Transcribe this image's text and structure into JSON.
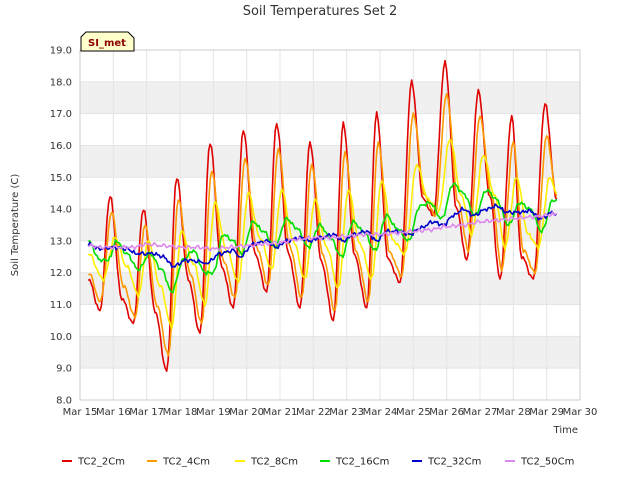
{
  "chart_data": {
    "type": "line",
    "title": "Soil Temperatures Set 2",
    "xlabel": "Time",
    "ylabel": "Soil Temperature (C)",
    "badge": "SI_met",
    "ylim": [
      8.0,
      19.0
    ],
    "xlim": [
      15,
      30
    ],
    "y_ticks": [
      "8.0",
      "9.0",
      "10.0",
      "11.0",
      "12.0",
      "13.0",
      "14.0",
      "15.0",
      "16.0",
      "17.0",
      "18.0",
      "19.0"
    ],
    "x_ticks": [
      "Mar 15",
      "Mar 16",
      "Mar 17",
      "Mar 18",
      "Mar 19",
      "Mar 20",
      "Mar 21",
      "Mar 22",
      "Mar 23",
      "Mar 24",
      "Mar 25",
      "Mar 26",
      "Mar 27",
      "Mar 28",
      "Mar 29",
      "Mar 30"
    ],
    "grid": true,
    "legend_position": "bottom",
    "series": [
      {
        "name": "TC2_2Cm",
        "color": "#e00000",
        "points": [
          [
            15.25,
            11.8
          ],
          [
            15.6,
            10.8
          ],
          [
            15.9,
            14.4
          ],
          [
            16.25,
            11.2
          ],
          [
            16.6,
            10.4
          ],
          [
            16.9,
            14.0
          ],
          [
            17.25,
            10.8
          ],
          [
            17.6,
            8.9
          ],
          [
            17.9,
            15.0
          ],
          [
            18.25,
            11.8
          ],
          [
            18.6,
            10.1
          ],
          [
            18.9,
            16.1
          ],
          [
            19.25,
            12.2
          ],
          [
            19.6,
            10.9
          ],
          [
            19.9,
            16.5
          ],
          [
            20.25,
            12.6
          ],
          [
            20.6,
            11.4
          ],
          [
            20.9,
            16.7
          ],
          [
            21.25,
            12.6
          ],
          [
            21.6,
            10.9
          ],
          [
            21.9,
            16.1
          ],
          [
            22.25,
            12.3
          ],
          [
            22.6,
            10.5
          ],
          [
            22.9,
            16.7
          ],
          [
            23.25,
            12.5
          ],
          [
            23.6,
            10.9
          ],
          [
            23.9,
            17.0
          ],
          [
            24.25,
            12.4
          ],
          [
            24.6,
            11.7
          ],
          [
            24.95,
            18.0
          ],
          [
            25.3,
            14.3
          ],
          [
            25.6,
            13.8
          ],
          [
            25.95,
            18.6
          ],
          [
            26.3,
            14.0
          ],
          [
            26.6,
            12.4
          ],
          [
            26.95,
            17.7
          ],
          [
            27.3,
            14.4
          ],
          [
            27.6,
            11.8
          ],
          [
            27.95,
            16.9
          ],
          [
            28.25,
            12.5
          ],
          [
            28.6,
            11.8
          ],
          [
            28.95,
            17.3
          ],
          [
            29.3,
            14.3
          ]
        ]
      },
      {
        "name": "TC2_4Cm",
        "color": "#ff9900",
        "points": [
          [
            15.25,
            12.0
          ],
          [
            15.62,
            11.1
          ],
          [
            15.95,
            13.9
          ],
          [
            16.3,
            11.6
          ],
          [
            16.65,
            10.6
          ],
          [
            16.95,
            13.5
          ],
          [
            17.3,
            11.0
          ],
          [
            17.65,
            9.4
          ],
          [
            17.95,
            14.3
          ],
          [
            18.3,
            12.0
          ],
          [
            18.65,
            10.4
          ],
          [
            18.95,
            15.2
          ],
          [
            19.3,
            12.4
          ],
          [
            19.65,
            11.2
          ],
          [
            19.95,
            15.6
          ],
          [
            20.3,
            12.8
          ],
          [
            20.65,
            11.6
          ],
          [
            20.95,
            15.9
          ],
          [
            21.3,
            12.8
          ],
          [
            21.65,
            11.2
          ],
          [
            21.95,
            15.4
          ],
          [
            22.3,
            12.5
          ],
          [
            22.65,
            10.8
          ],
          [
            22.95,
            15.8
          ],
          [
            23.3,
            12.6
          ],
          [
            23.65,
            11.1
          ],
          [
            23.95,
            16.1
          ],
          [
            24.3,
            12.6
          ],
          [
            24.65,
            11.9
          ],
          [
            25.0,
            17.0
          ],
          [
            25.35,
            14.4
          ],
          [
            25.65,
            13.8
          ],
          [
            26.0,
            17.6
          ],
          [
            26.35,
            14.2
          ],
          [
            26.65,
            12.7
          ],
          [
            27.0,
            16.9
          ],
          [
            27.35,
            14.4
          ],
          [
            27.65,
            12.1
          ],
          [
            28.0,
            16.1
          ],
          [
            28.3,
            12.7
          ],
          [
            28.65,
            12.0
          ],
          [
            29.0,
            16.3
          ],
          [
            29.3,
            14.4
          ]
        ]
      },
      {
        "name": "TC2_8Cm",
        "color": "#ffee00",
        "points": [
          [
            15.25,
            12.6
          ],
          [
            15.7,
            11.8
          ],
          [
            16.05,
            13.1
          ],
          [
            16.4,
            12.2
          ],
          [
            16.75,
            11.3
          ],
          [
            17.05,
            13.0
          ],
          [
            17.4,
            11.6
          ],
          [
            17.75,
            10.3
          ],
          [
            18.05,
            13.3
          ],
          [
            18.4,
            12.3
          ],
          [
            18.75,
            11.0
          ],
          [
            19.05,
            14.2
          ],
          [
            19.4,
            12.7
          ],
          [
            19.75,
            11.7
          ],
          [
            20.05,
            14.5
          ],
          [
            20.4,
            13.1
          ],
          [
            20.75,
            12.1
          ],
          [
            21.05,
            14.6
          ],
          [
            21.4,
            13.0
          ],
          [
            21.75,
            11.8
          ],
          [
            22.05,
            14.3
          ],
          [
            22.4,
            12.8
          ],
          [
            22.75,
            11.5
          ],
          [
            23.05,
            14.6
          ],
          [
            23.4,
            12.9
          ],
          [
            23.75,
            11.8
          ],
          [
            24.05,
            14.9
          ],
          [
            24.4,
            13.0
          ],
          [
            24.75,
            12.6
          ],
          [
            25.1,
            15.4
          ],
          [
            25.45,
            14.3
          ],
          [
            25.75,
            13.9
          ],
          [
            26.1,
            16.2
          ],
          [
            26.45,
            14.4
          ],
          [
            26.75,
            13.2
          ],
          [
            27.1,
            15.7
          ],
          [
            27.45,
            14.4
          ],
          [
            27.75,
            12.8
          ],
          [
            28.1,
            15.0
          ],
          [
            28.45,
            13.2
          ],
          [
            28.75,
            12.8
          ],
          [
            29.1,
            15.0
          ],
          [
            29.3,
            14.5
          ]
        ]
      },
      {
        "name": "TC2_16Cm",
        "color": "#00dd00",
        "points": [
          [
            15.25,
            13.0
          ],
          [
            15.6,
            12.4
          ],
          [
            15.85,
            12.4
          ],
          [
            16.1,
            13.0
          ],
          [
            16.4,
            12.6
          ],
          [
            16.75,
            12.1
          ],
          [
            17.1,
            12.6
          ],
          [
            17.45,
            12.1
          ],
          [
            17.75,
            11.4
          ],
          [
            18.1,
            12.4
          ],
          [
            18.4,
            12.7
          ],
          [
            18.75,
            12.0
          ],
          [
            19.0,
            12.0
          ],
          [
            19.3,
            13.2
          ],
          [
            19.6,
            13.0
          ],
          [
            19.85,
            12.6
          ],
          [
            20.2,
            13.6
          ],
          [
            20.5,
            13.3
          ],
          [
            20.85,
            12.8
          ],
          [
            21.2,
            13.7
          ],
          [
            21.5,
            13.4
          ],
          [
            21.85,
            12.8
          ],
          [
            22.2,
            13.5
          ],
          [
            22.5,
            13.1
          ],
          [
            22.85,
            12.5
          ],
          [
            23.2,
            13.6
          ],
          [
            23.5,
            13.3
          ],
          [
            23.85,
            12.7
          ],
          [
            24.2,
            13.8
          ],
          [
            24.5,
            13.4
          ],
          [
            24.85,
            13.0
          ],
          [
            25.2,
            14.1
          ],
          [
            25.5,
            14.2
          ],
          [
            25.85,
            13.7
          ],
          [
            26.2,
            14.8
          ],
          [
            26.5,
            14.5
          ],
          [
            26.85,
            13.8
          ],
          [
            27.2,
            14.6
          ],
          [
            27.5,
            14.3
          ],
          [
            27.85,
            13.5
          ],
          [
            28.2,
            14.2
          ],
          [
            28.5,
            14.0
          ],
          [
            28.85,
            13.3
          ],
          [
            29.2,
            14.3
          ],
          [
            29.3,
            14.3
          ]
        ]
      },
      {
        "name": "TC2_32Cm",
        "color": "#0000cc",
        "points": [
          [
            15.25,
            12.9
          ],
          [
            15.6,
            12.75
          ],
          [
            16.0,
            12.8
          ],
          [
            16.4,
            12.75
          ],
          [
            16.7,
            12.6
          ],
          [
            17.2,
            12.6
          ],
          [
            17.5,
            12.5
          ],
          [
            17.8,
            12.2
          ],
          [
            18.2,
            12.4
          ],
          [
            18.6,
            12.35
          ],
          [
            18.8,
            12.3
          ],
          [
            19.2,
            12.6
          ],
          [
            19.6,
            12.7
          ],
          [
            19.8,
            12.5
          ],
          [
            20.2,
            12.9
          ],
          [
            20.6,
            13.0
          ],
          [
            20.9,
            12.8
          ],
          [
            21.2,
            13.0
          ],
          [
            21.6,
            13.1
          ],
          [
            21.9,
            13.0
          ],
          [
            22.2,
            13.1
          ],
          [
            22.6,
            13.2
          ],
          [
            22.9,
            13.0
          ],
          [
            23.2,
            13.2
          ],
          [
            23.6,
            13.3
          ],
          [
            23.9,
            13.0
          ],
          [
            24.2,
            13.3
          ],
          [
            24.6,
            13.3
          ],
          [
            24.9,
            13.2
          ],
          [
            25.2,
            13.4
          ],
          [
            25.6,
            13.6
          ],
          [
            25.9,
            13.5
          ],
          [
            26.2,
            13.8
          ],
          [
            26.5,
            14.0
          ],
          [
            26.8,
            13.8
          ],
          [
            27.2,
            14.0
          ],
          [
            27.5,
            14.1
          ],
          [
            27.8,
            13.9
          ],
          [
            28.2,
            13.9
          ],
          [
            28.5,
            13.95
          ],
          [
            28.8,
            13.7
          ],
          [
            29.2,
            13.9
          ],
          [
            29.3,
            13.85
          ]
        ]
      },
      {
        "name": "TC2_50Cm",
        "color": "#dd88ee",
        "points": [
          [
            15.25,
            12.85
          ],
          [
            15.7,
            12.8
          ],
          [
            16.2,
            12.8
          ],
          [
            16.6,
            12.8
          ],
          [
            17.0,
            12.9
          ],
          [
            17.5,
            12.85
          ],
          [
            18.0,
            12.8
          ],
          [
            18.5,
            12.8
          ],
          [
            19.0,
            12.75
          ],
          [
            19.5,
            12.8
          ],
          [
            20.0,
            12.85
          ],
          [
            20.5,
            12.9
          ],
          [
            21.0,
            12.95
          ],
          [
            21.5,
            13.05
          ],
          [
            22.0,
            13.1
          ],
          [
            22.5,
            13.1
          ],
          [
            23.0,
            13.15
          ],
          [
            23.5,
            13.2
          ],
          [
            24.0,
            13.2
          ],
          [
            24.5,
            13.25
          ],
          [
            25.0,
            13.3
          ],
          [
            25.5,
            13.35
          ],
          [
            26.0,
            13.45
          ],
          [
            26.5,
            13.5
          ],
          [
            27.0,
            13.6
          ],
          [
            27.5,
            13.65
          ],
          [
            28.0,
            13.7
          ],
          [
            28.5,
            13.75
          ],
          [
            29.0,
            13.8
          ],
          [
            29.3,
            13.85
          ]
        ]
      }
    ]
  }
}
